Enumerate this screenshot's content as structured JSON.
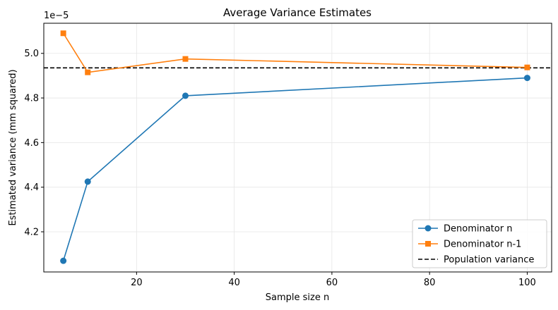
{
  "chart_data": {
    "type": "line",
    "title": "Average Variance Estimates",
    "xlabel": "Sample size n",
    "ylabel": "Estimated variance (mm squared)",
    "y_offset_label": "1e−5",
    "xlim": [
      1,
      105
    ],
    "ylim": [
      4.02,
      5.135
    ],
    "x_ticks": [
      20,
      40,
      60,
      80,
      100
    ],
    "y_ticks": [
      4.2,
      4.4,
      4.6,
      4.8,
      5.0
    ],
    "y_tick_labels": [
      "4.2",
      "4.4",
      "4.6",
      "4.8",
      "5.0"
    ],
    "grid": true,
    "legend_position": "lower-right",
    "x": [
      5,
      10,
      30,
      100
    ],
    "series": [
      {
        "name": "Denominator n",
        "values": [
          4.07,
          4.425,
          4.81,
          4.89
        ],
        "color": "#1f77b4",
        "marker": "circle"
      },
      {
        "name": "Denominator n-1",
        "values": [
          5.09,
          4.915,
          4.975,
          4.937
        ],
        "color": "#ff7f0e",
        "marker": "square"
      }
    ],
    "reference_line": {
      "name": "Population variance",
      "value": 4.935,
      "color": "#000000",
      "style": "dashed"
    }
  }
}
